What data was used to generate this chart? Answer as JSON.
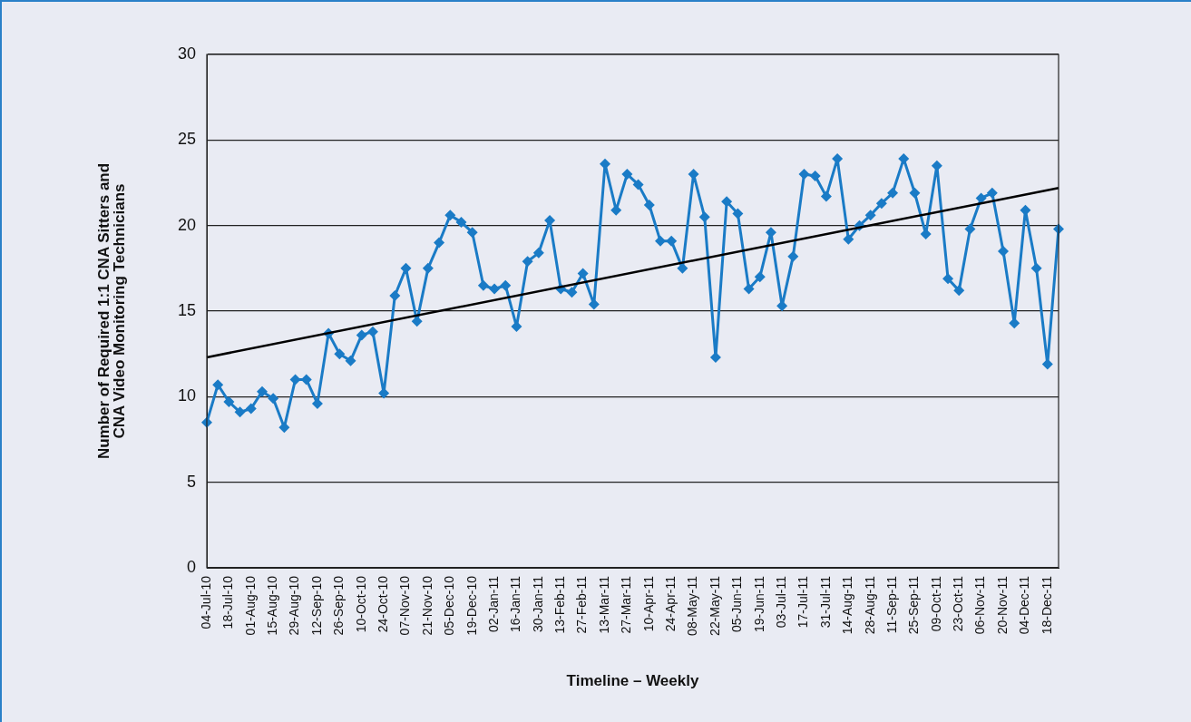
{
  "chart_data": {
    "type": "line",
    "xlabel": "Timeline – Weekly",
    "ylabel": "Number of Required 1:1 CNA Sitters and\nCNA Video Monitoring Technicians",
    "categories": [
      "04-Jul-10",
      null,
      "18-Jul-10",
      null,
      "01-Aug-10",
      null,
      "15-Aug-10",
      null,
      "29-Aug-10",
      null,
      "12-Sep-10",
      null,
      "26-Sep-10",
      null,
      "10-Oct-10",
      null,
      "24-Oct-10",
      null,
      "07-Nov-10",
      null,
      "21-Nov-10",
      null,
      "05-Dec-10",
      null,
      "19-Dec-10",
      null,
      "02-Jan-11",
      null,
      "16-Jan-11",
      null,
      "30-Jan-11",
      null,
      "13-Feb-11",
      null,
      "27-Feb-11",
      null,
      "13-Mar-11",
      null,
      "27-Mar-11",
      null,
      "10-Apr-11",
      null,
      "24-Apr-11",
      null,
      "08-May-11",
      null,
      "22-May-11",
      null,
      "05-Jun-11",
      null,
      "19-Jun-11",
      null,
      "03-Jul-11",
      null,
      "17-Jul-11",
      null,
      "31-Jul-11",
      null,
      "14-Aug-11",
      null,
      "28-Aug-11",
      null,
      "11-Sep-11",
      null,
      "25-Sep-11",
      null,
      "09-Oct-11",
      null,
      "23-Oct-11",
      null,
      "06-Nov-11",
      null,
      "20-Nov-11",
      null,
      "04-Dec-11",
      null,
      "18-Dec-11",
      null
    ],
    "series": [
      {
        "color": "#1a7bc6",
        "marker": "diamond",
        "line_style": "solid",
        "values": [
          8.5,
          10.7,
          9.7,
          9.1,
          9.3,
          10.3,
          9.9,
          8.2,
          11.0,
          11.0,
          9.6,
          13.7,
          12.5,
          12.1,
          13.6,
          13.8,
          10.2,
          15.9,
          17.5,
          14.4,
          17.5,
          19.0,
          20.6,
          20.2,
          19.6,
          16.5,
          16.3,
          16.5,
          14.1,
          17.9,
          18.4,
          20.3,
          16.3,
          16.1,
          17.2,
          15.4,
          23.6,
          20.9,
          23.0,
          22.4,
          21.2,
          19.1,
          19.1,
          17.5,
          23.0,
          20.5,
          12.3,
          21.4,
          20.7,
          16.3,
          17.0,
          19.6,
          15.3,
          18.2,
          23.0,
          22.9,
          21.7,
          23.9,
          19.2,
          20.0,
          20.6,
          21.3,
          21.9,
          23.9,
          21.9,
          19.5,
          23.5,
          16.9,
          16.2,
          19.8,
          21.6,
          21.9,
          18.5,
          14.3,
          20.9,
          17.5,
          11.9,
          19.8
        ]
      },
      {
        "type": "line",
        "color": "#000000",
        "marker": "none",
        "line_style": "solid",
        "values": [
          12.3,
          null,
          null,
          null,
          null,
          null,
          null,
          null,
          null,
          null,
          null,
          null,
          null,
          null,
          null,
          null,
          null,
          null,
          null,
          null,
          null,
          null,
          null,
          null,
          null,
          null,
          null,
          null,
          null,
          null,
          null,
          null,
          null,
          null,
          null,
          null,
          null,
          null,
          null,
          null,
          null,
          null,
          null,
          null,
          null,
          null,
          null,
          null,
          null,
          null,
          null,
          null,
          null,
          null,
          null,
          null,
          null,
          null,
          null,
          null,
          null,
          null,
          null,
          null,
          null,
          null,
          null,
          null,
          null,
          null,
          null,
          null,
          null,
          null,
          null,
          null,
          null,
          22.2
        ]
      }
    ],
    "ylim": [
      0,
      30
    ],
    "yticks": [
      0,
      5,
      10,
      15,
      20,
      25,
      30
    ],
    "grid": "y",
    "legend": false
  }
}
